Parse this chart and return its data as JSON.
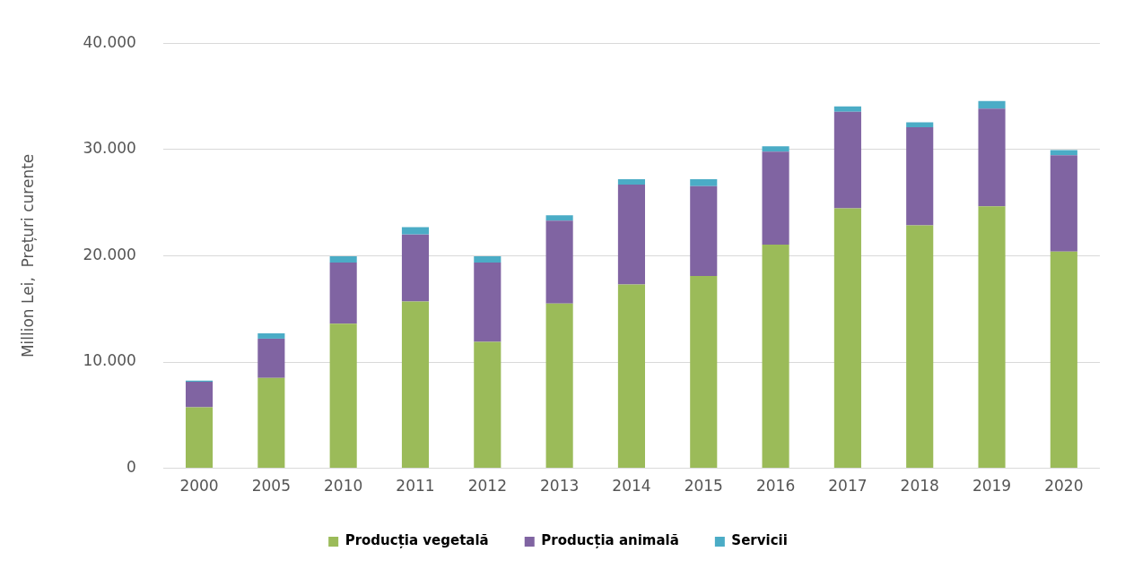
{
  "chart_data": {
    "type": "bar",
    "stacked": true,
    "ylabel": "Million Lei,  Prețuri curente",
    "categories": [
      "2000",
      "2005",
      "2010",
      "2011",
      "2012",
      "2013",
      "2014",
      "2015",
      "2016",
      "2017",
      "2018",
      "2019",
      "2020"
    ],
    "series": [
      {
        "name": "Producția vegetală",
        "color": "#9bbb59",
        "values": [
          5750,
          8500,
          13600,
          15700,
          11900,
          15500,
          17300,
          18100,
          21050,
          24450,
          22850,
          24650,
          20400
        ]
      },
      {
        "name": "Producția animală",
        "color": "#8064a2",
        "values": [
          2400,
          3700,
          5750,
          6300,
          7450,
          7800,
          9400,
          8450,
          8750,
          9100,
          9250,
          9200,
          9050
        ]
      },
      {
        "name": "Servicii",
        "color": "#4bacc6",
        "values": [
          100,
          500,
          600,
          700,
          600,
          500,
          500,
          650,
          500,
          500,
          450,
          700,
          500
        ]
      }
    ],
    "ylim": [
      0,
      40000
    ],
    "yticks": [
      0,
      {
        "value": 10000,
        "label": "10.000"
      },
      {
        "value": 20000,
        "label": "20.000"
      },
      {
        "value": 30000,
        "label": "30.000"
      },
      {
        "value": 40000,
        "label": "40.000"
      }
    ],
    "grid": "y",
    "legend": "bottom"
  }
}
